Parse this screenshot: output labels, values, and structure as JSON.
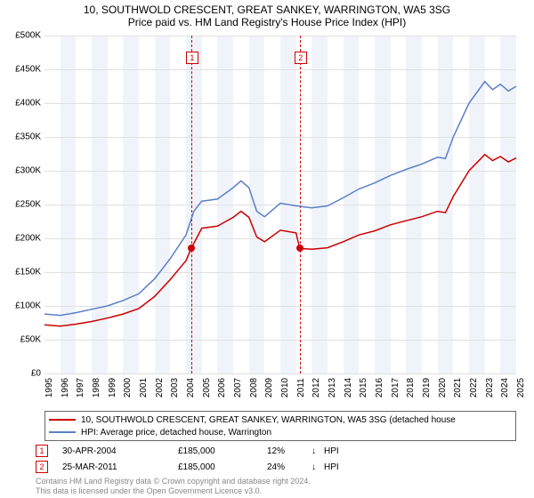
{
  "title": "10, SOUTHWOLD CRESCENT, GREAT SANKEY, WARRINGTON, WA5 3SG",
  "subtitle": "Price paid vs. HM Land Registry's House Price Index (HPI)",
  "chart": {
    "type": "line",
    "background_color": "#ffffff",
    "grid_color": "#e0e0e0",
    "band_color_even": "#f0f4fa",
    "band_color_odd": "#ffffff",
    "xlim": [
      1995,
      2025
    ],
    "ylim": [
      0,
      500000
    ],
    "ytick_step": 50000,
    "yticks": [
      "£0",
      "£50K",
      "£100K",
      "£150K",
      "£200K",
      "£250K",
      "£300K",
      "£350K",
      "£400K",
      "£450K",
      "£500K"
    ],
    "xticks": [
      1995,
      1996,
      1997,
      1998,
      1999,
      2000,
      2001,
      2002,
      2003,
      2004,
      2005,
      2006,
      2007,
      2008,
      2009,
      2010,
      2011,
      2012,
      2013,
      2014,
      2015,
      2016,
      2017,
      2018,
      2019,
      2020,
      2021,
      2022,
      2023,
      2024,
      2025
    ],
    "label_fontsize": 10,
    "title_fontsize": 12,
    "series": [
      {
        "name": "hpi",
        "color": "#5b7fc7",
        "width": 1.5,
        "label": "HPI: Average price, detached house, Warrington",
        "points": [
          [
            1995,
            88000
          ],
          [
            1996,
            86000
          ],
          [
            1997,
            90000
          ],
          [
            1998,
            95000
          ],
          [
            1999,
            100000
          ],
          [
            2000,
            108000
          ],
          [
            2001,
            118000
          ],
          [
            2002,
            140000
          ],
          [
            2003,
            170000
          ],
          [
            2004,
            205000
          ],
          [
            2004.5,
            240000
          ],
          [
            2005,
            255000
          ],
          [
            2006,
            258000
          ],
          [
            2007,
            275000
          ],
          [
            2007.5,
            285000
          ],
          [
            2008,
            275000
          ],
          [
            2008.5,
            240000
          ],
          [
            2009,
            232000
          ],
          [
            2010,
            252000
          ],
          [
            2011,
            248000
          ],
          [
            2012,
            245000
          ],
          [
            2013,
            248000
          ],
          [
            2014,
            260000
          ],
          [
            2015,
            273000
          ],
          [
            2016,
            282000
          ],
          [
            2017,
            293000
          ],
          [
            2018,
            302000
          ],
          [
            2019,
            310000
          ],
          [
            2020,
            320000
          ],
          [
            2020.5,
            318000
          ],
          [
            2021,
            350000
          ],
          [
            2022,
            400000
          ],
          [
            2023,
            432000
          ],
          [
            2023.5,
            420000
          ],
          [
            2024,
            428000
          ],
          [
            2024.5,
            418000
          ],
          [
            2025,
            425000
          ]
        ]
      },
      {
        "name": "price_paid",
        "color": "#cc0000",
        "width": 1.5,
        "label": "10, SOUTHWOLD CRESCENT, GREAT SANKEY, WARRINGTON, WA5 3SG (detached house",
        "points": [
          [
            1995,
            72000
          ],
          [
            1996,
            70000
          ],
          [
            1997,
            73000
          ],
          [
            1998,
            77000
          ],
          [
            1999,
            82000
          ],
          [
            2000,
            88000
          ],
          [
            2001,
            96000
          ],
          [
            2002,
            114000
          ],
          [
            2003,
            139000
          ],
          [
            2004,
            167000
          ],
          [
            2004.33,
            185000
          ],
          [
            2005,
            215000
          ],
          [
            2006,
            218000
          ],
          [
            2007,
            231000
          ],
          [
            2007.5,
            240000
          ],
          [
            2008,
            231000
          ],
          [
            2008.5,
            202000
          ],
          [
            2009,
            195000
          ],
          [
            2010,
            212000
          ],
          [
            2011,
            208000
          ],
          [
            2011.23,
            185000
          ],
          [
            2012,
            184000
          ],
          [
            2013,
            186000
          ],
          [
            2014,
            195000
          ],
          [
            2015,
            205000
          ],
          [
            2016,
            211000
          ],
          [
            2017,
            220000
          ],
          [
            2018,
            226000
          ],
          [
            2019,
            232000
          ],
          [
            2020,
            240000
          ],
          [
            2020.5,
            238000
          ],
          [
            2021,
            262000
          ],
          [
            2022,
            300000
          ],
          [
            2023,
            324000
          ],
          [
            2023.5,
            315000
          ],
          [
            2024,
            321000
          ],
          [
            2024.5,
            313000
          ],
          [
            2025,
            319000
          ]
        ]
      }
    ],
    "sale_markers": [
      {
        "n": "1",
        "x": 2004.33,
        "y": 185000
      },
      {
        "n": "2",
        "x": 2011.23,
        "y": 185000
      }
    ],
    "marker_border_color": "#cc0000"
  },
  "legend": {
    "items": [
      {
        "color": "#cc0000",
        "label": "10, SOUTHWOLD CRESCENT, GREAT SANKEY, WARRINGTON, WA5 3SG (detached house"
      },
      {
        "color": "#5b7fc7",
        "label": "HPI: Average price, detached house, Warrington"
      }
    ]
  },
  "sales": [
    {
      "n": "1",
      "date": "30-APR-2004",
      "price": "£185,000",
      "pct": "12%",
      "arrow": "↓",
      "hpi": "HPI"
    },
    {
      "n": "2",
      "date": "25-MAR-2011",
      "price": "£185,000",
      "pct": "24%",
      "arrow": "↓",
      "hpi": "HPI"
    }
  ],
  "footer": {
    "line1": "Contains HM Land Registry data © Crown copyright and database right 2024.",
    "line2": "This data is licensed under the Open Government Licence v3.0."
  }
}
